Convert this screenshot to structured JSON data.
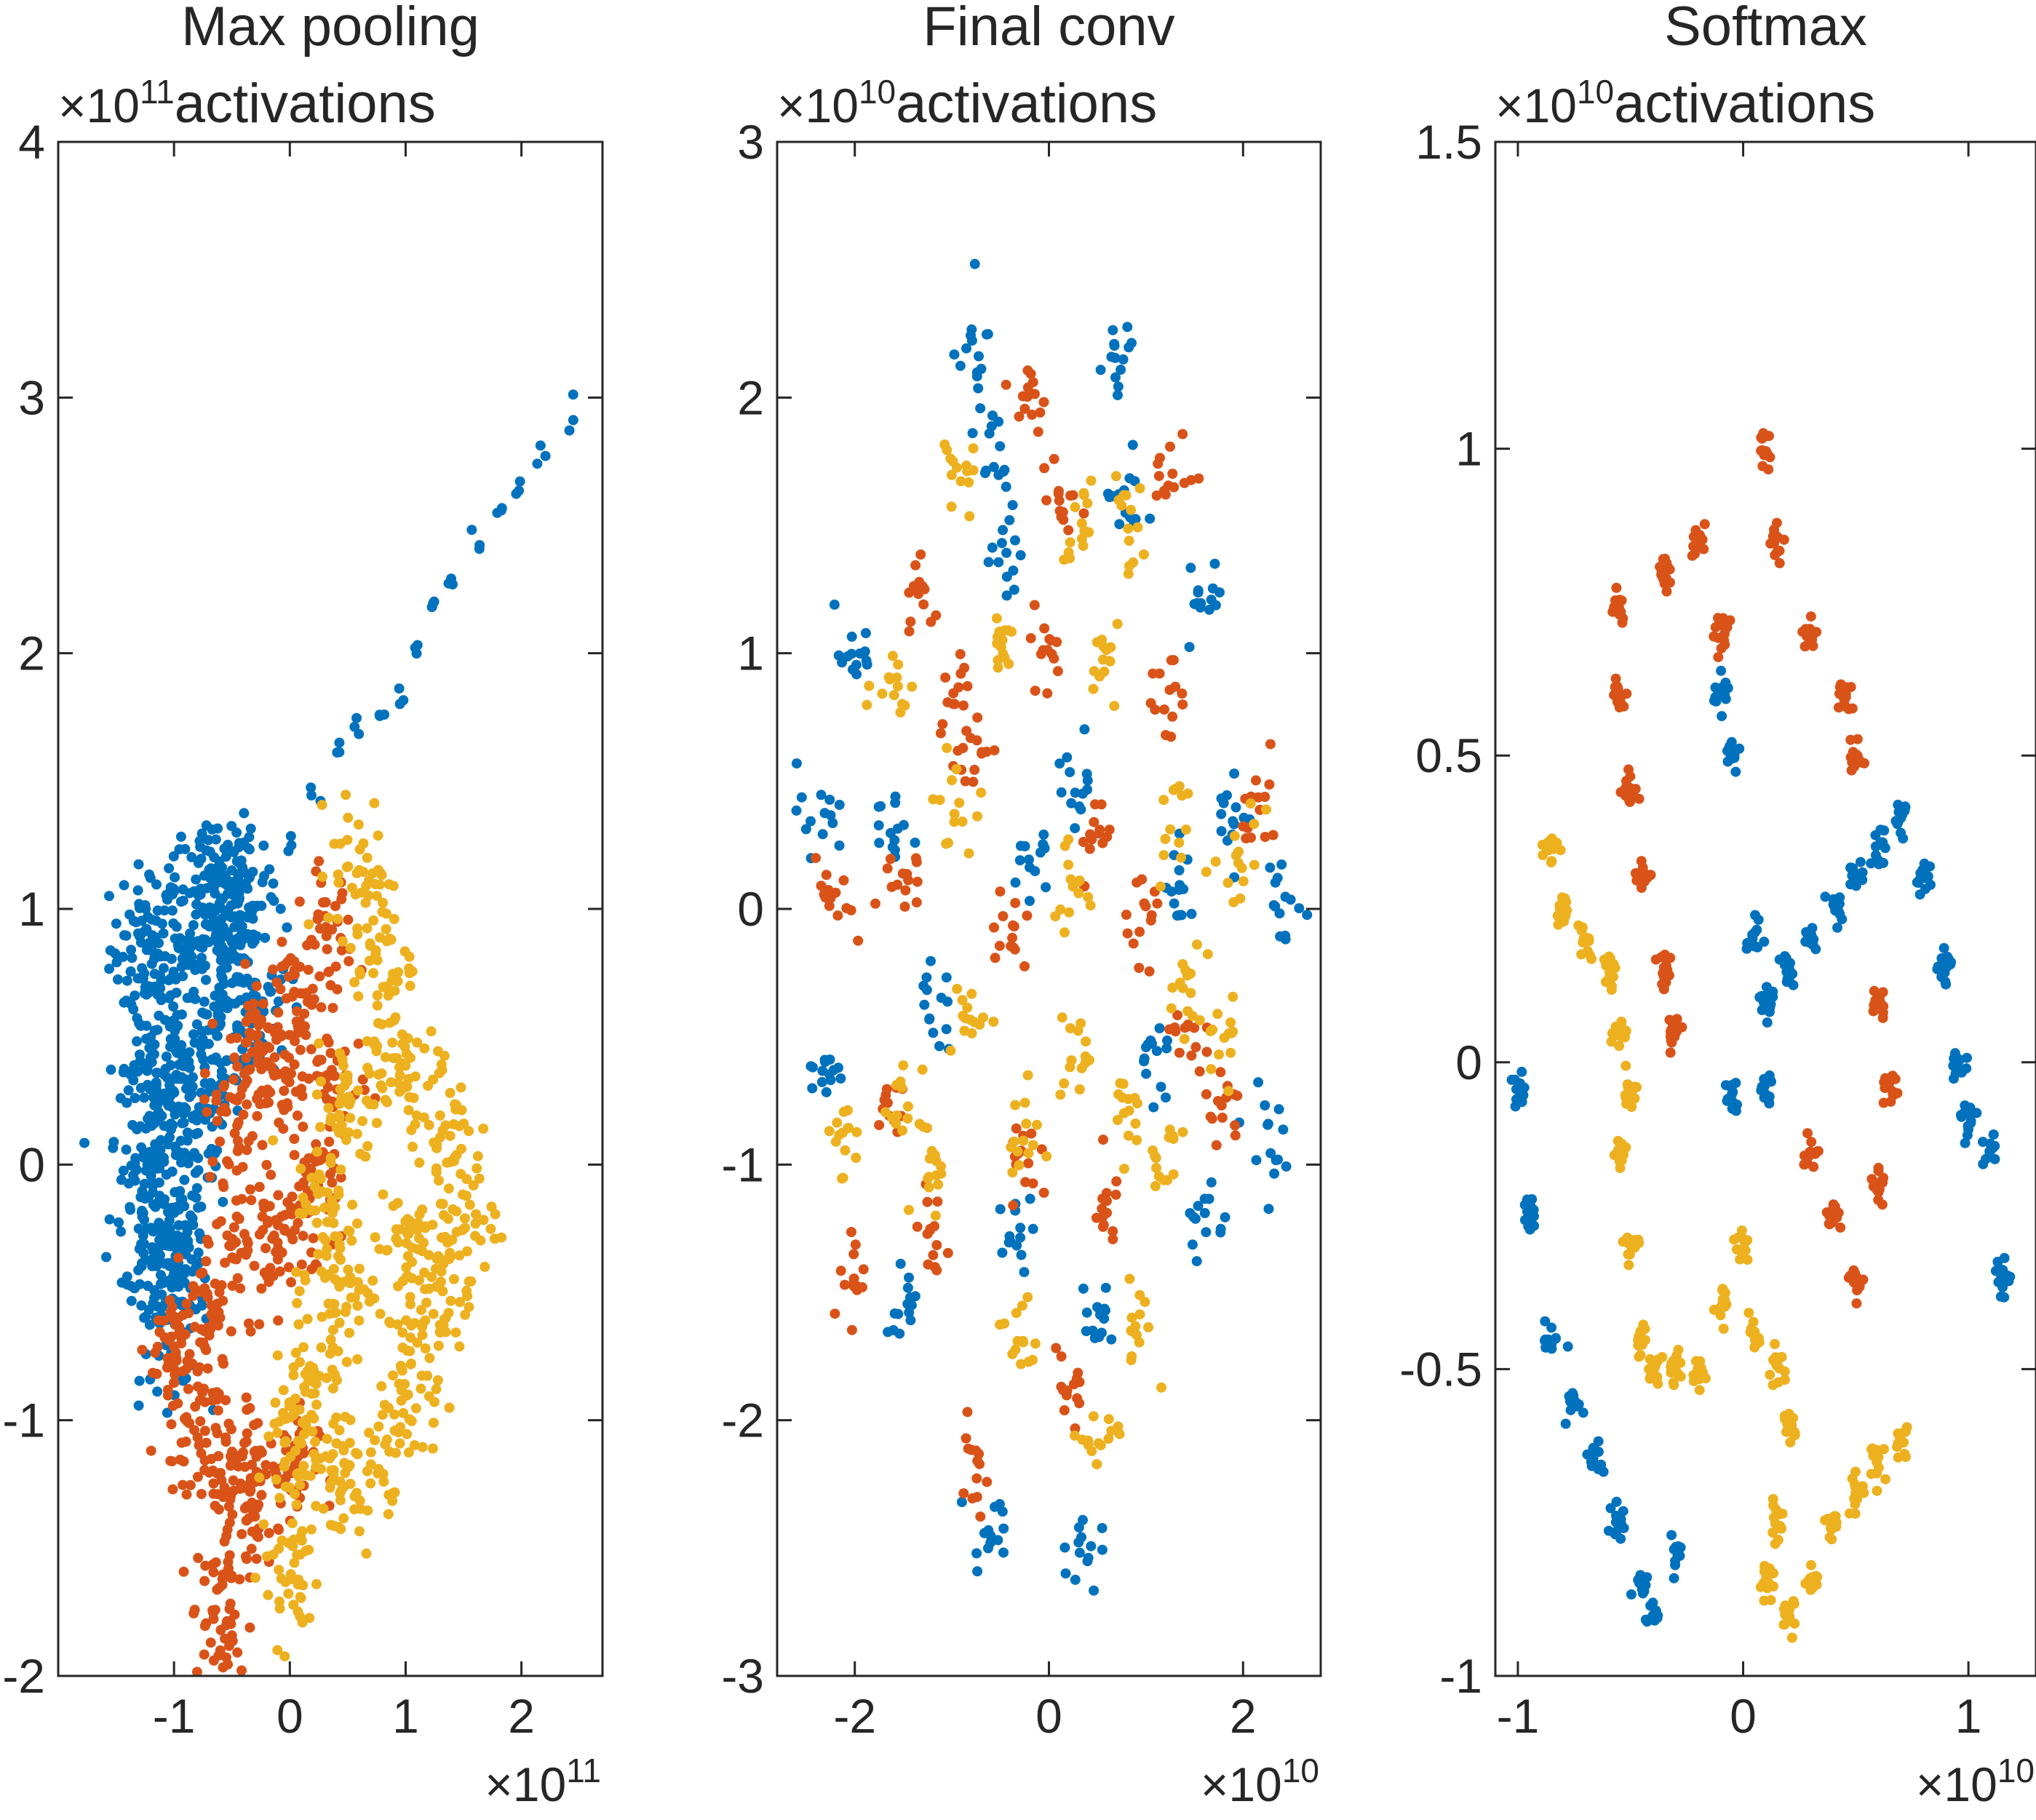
{
  "chart_data": [
    {
      "type": "scatter",
      "title_line1": "Max pooling",
      "title_line2": "activations",
      "xlabel": "",
      "ylabel": "",
      "xlim": [
        -2.0,
        2.7
      ],
      "ylim": [
        -2,
        4
      ],
      "x_ticks": [
        -1,
        0,
        1,
        2
      ],
      "y_ticks": [
        -2,
        -1,
        0,
        1,
        2,
        3,
        4
      ],
      "x_tick_labels": [
        "-1",
        "0",
        "1",
        "2"
      ],
      "y_tick_labels": [
        "-2",
        "-1",
        "0",
        "1",
        "2",
        "3",
        "4"
      ],
      "x_exponent": "×10",
      "x_exponent_power": "11",
      "y_exponent": "×10",
      "y_exponent_power": "11",
      "grid": false,
      "legend": "none",
      "colors": [
        "#0072BD",
        "#D95319",
        "#EDB120"
      ],
      "clusters": [
        {
          "color": 0,
          "points": [
            [
              -1.25,
              0.85
            ],
            [
              -1.15,
              0.6
            ],
            [
              -1.2,
              0.2
            ],
            [
              -1.25,
              -0.1
            ],
            [
              -1.15,
              -0.4
            ],
            [
              -1.0,
              -0.55
            ],
            [
              -0.95,
              -0.3
            ],
            [
              -0.8,
              0.1
            ],
            [
              -0.6,
              0.5
            ],
            [
              -0.5,
              0.8
            ],
            [
              -0.7,
              1.05
            ],
            [
              -0.4,
              1.1
            ],
            [
              -0.3,
              0.6
            ],
            [
              -0.6,
              0.95
            ],
            [
              -1.1,
              0.3
            ],
            [
              -0.9,
              0.9
            ]
          ],
          "spread": 0.16,
          "count": 55
        },
        {
          "color": 0,
          "points": [
            [
              -0.2,
              1.1
            ],
            [
              0.0,
              1.25
            ],
            [
              0.2,
              1.45
            ],
            [
              0.4,
              1.6
            ],
            [
              0.6,
              1.7
            ],
            [
              0.8,
              1.75
            ],
            [
              0.95,
              1.85
            ],
            [
              1.1,
              2.0
            ],
            [
              1.25,
              2.2
            ],
            [
              1.4,
              2.3
            ],
            [
              1.6,
              2.45
            ],
            [
              1.8,
              2.55
            ],
            [
              2.0,
              2.65
            ],
            [
              2.2,
              2.78
            ],
            [
              2.4,
              2.95
            ]
          ],
          "spread": 0.03,
          "count": 3
        },
        {
          "color": 1,
          "points": [
            [
              -0.5,
              0.2
            ],
            [
              -0.3,
              0.5
            ],
            [
              -0.1,
              0.3
            ],
            [
              0.1,
              0.6
            ],
            [
              0.3,
              0.9
            ],
            [
              0.4,
              0.3
            ],
            [
              0.2,
              -0.1
            ],
            [
              -0.1,
              -0.3
            ],
            [
              -0.4,
              -0.3
            ],
            [
              -0.7,
              -0.6
            ],
            [
              -1.0,
              -0.7
            ],
            [
              -0.9,
              -1.0
            ],
            [
              -0.6,
              -1.1
            ],
            [
              -0.3,
              -1.15
            ],
            [
              0.0,
              -1.2
            ],
            [
              -0.5,
              -1.5
            ],
            [
              -0.6,
              -1.8
            ]
          ],
          "spread": 0.13,
          "count": 40
        },
        {
          "color": 2,
          "points": [
            [
              0.6,
              1.15
            ],
            [
              0.8,
              0.8
            ],
            [
              0.9,
              0.4
            ],
            [
              0.5,
              0.2
            ],
            [
              0.3,
              -0.2
            ],
            [
              0.5,
              -0.5
            ],
            [
              0.2,
              -0.8
            ],
            [
              0.4,
              -1.2
            ],
            [
              0.8,
              -1.1
            ],
            [
              1.1,
              -0.8
            ],
            [
              1.3,
              -0.5
            ],
            [
              1.5,
              -0.2
            ],
            [
              1.3,
              0.2
            ],
            [
              1.0,
              -0.3
            ],
            [
              0.0,
              -1.1
            ],
            [
              0.0,
              -1.6
            ]
          ],
          "spread": 0.14,
          "count": 42
        }
      ]
    },
    {
      "type": "scatter",
      "title_line1": "Final conv",
      "title_line2": "activations",
      "xlabel": "",
      "ylabel": "",
      "xlim": [
        -2.8,
        2.8
      ],
      "ylim": [
        -3,
        3
      ],
      "x_ticks": [
        -2,
        0,
        2
      ],
      "y_ticks": [
        -3,
        -2,
        -1,
        0,
        1,
        2,
        3
      ],
      "x_tick_labels": [
        "-2",
        "0",
        "2"
      ],
      "y_tick_labels": [
        "-3",
        "-2",
        "-1",
        "0",
        "1",
        "2",
        "3"
      ],
      "x_exponent": "×10",
      "x_exponent_power": "10",
      "y_exponent": "×10",
      "y_exponent_power": "10",
      "grid": false,
      "legend": "none",
      "colors": [
        "#0072BD",
        "#D95319",
        "#EDB120"
      ],
      "clusters": [
        {
          "color": 0,
          "points": [
            [
              -0.8,
              2.2
            ],
            [
              -0.6,
              1.8
            ],
            [
              0.7,
              2.1
            ],
            [
              0.8,
              1.6
            ],
            [
              -2.0,
              1.0
            ],
            [
              -2.4,
              0.4
            ],
            [
              -1.6,
              0.3
            ],
            [
              -2.3,
              -0.6
            ],
            [
              -1.2,
              -0.4
            ],
            [
              -0.4,
              1.4
            ],
            [
              0.3,
              0.5
            ],
            [
              1.6,
              1.2
            ],
            [
              1.9,
              0.4
            ],
            [
              2.4,
              0.0
            ],
            [
              1.4,
              0.1
            ],
            [
              -1.5,
              -1.5
            ],
            [
              -0.3,
              -1.3
            ],
            [
              0.5,
              -1.6
            ],
            [
              1.6,
              -1.2
            ],
            [
              2.2,
              -0.9
            ],
            [
              -0.6,
              -2.4
            ],
            [
              0.3,
              -2.5
            ],
            [
              1.1,
              -0.6
            ],
            [
              -0.2,
              0.2
            ]
          ],
          "spread": 0.09,
          "count": 14
        },
        {
          "color": 1,
          "points": [
            [
              -0.2,
              2.0
            ],
            [
              0.1,
              1.6
            ],
            [
              1.3,
              1.7
            ],
            [
              -1.3,
              1.2
            ],
            [
              -1.0,
              0.9
            ],
            [
              0.0,
              1.0
            ],
            [
              1.2,
              0.8
            ],
            [
              -2.2,
              0.0
            ],
            [
              -1.5,
              0.1
            ],
            [
              -0.8,
              0.6
            ],
            [
              -0.4,
              -0.1
            ],
            [
              0.5,
              0.3
            ],
            [
              1.0,
              0.0
            ],
            [
              2.2,
              0.4
            ],
            [
              -2.0,
              -1.5
            ],
            [
              -1.2,
              -1.3
            ],
            [
              -0.2,
              -1.0
            ],
            [
              0.6,
              -1.2
            ],
            [
              1.8,
              -0.8
            ],
            [
              -0.8,
              -2.2
            ],
            [
              0.2,
              -1.9
            ],
            [
              -1.6,
              -0.8
            ],
            [
              1.4,
              -0.5
            ]
          ],
          "spread": 0.09,
          "count": 14
        },
        {
          "color": 2,
          "points": [
            [
              -0.9,
              1.7
            ],
            [
              0.3,
              1.5
            ],
            [
              0.8,
              1.5
            ],
            [
              -1.6,
              0.9
            ],
            [
              -0.5,
              1.1
            ],
            [
              0.6,
              1.0
            ],
            [
              -1.0,
              0.4
            ],
            [
              0.2,
              0.1
            ],
            [
              1.3,
              0.3
            ],
            [
              2.0,
              0.2
            ],
            [
              -1.5,
              -0.8
            ],
            [
              -0.8,
              -0.4
            ],
            [
              0.3,
              -0.6
            ],
            [
              1.4,
              -0.3
            ],
            [
              1.8,
              -0.5
            ],
            [
              -1.2,
              -1.0
            ],
            [
              -0.3,
              -0.9
            ],
            [
              0.8,
              -0.8
            ],
            [
              1.2,
              -1.0
            ],
            [
              -0.3,
              -1.7
            ],
            [
              0.5,
              -2.1
            ],
            [
              0.9,
              -1.6
            ],
            [
              -2.1,
              -0.9
            ]
          ],
          "spread": 0.09,
          "count": 14
        }
      ]
    },
    {
      "type": "scatter",
      "title_line1": "Softmax",
      "title_line2": "activations",
      "xlabel": "",
      "ylabel": "",
      "xlim": [
        -1.1,
        1.3
      ],
      "ylim": [
        -1,
        1.5
      ],
      "x_ticks": [
        -1,
        0,
        1
      ],
      "y_ticks": [
        -1,
        -0.5,
        0,
        0.5,
        1,
        1.5
      ],
      "x_tick_labels": [
        "-1",
        "0",
        "1"
      ],
      "y_tick_labels": [
        "-1",
        "-0.5",
        "0",
        "0.5",
        "1",
        "1.5"
      ],
      "x_exponent": "×10",
      "x_exponent_power": "10",
      "y_exponent": "×10",
      "y_exponent_power": "10",
      "grid": false,
      "legend": "none",
      "colors": [
        "#0072BD",
        "#D95319",
        "#EDB120"
      ],
      "clusters": [
        {
          "color": 0,
          "points": [
            [
              -1.0,
              -0.05
            ],
            [
              -0.95,
              -0.25
            ],
            [
              -0.85,
              -0.45
            ],
            [
              -0.75,
              -0.55
            ],
            [
              -0.65,
              -0.65
            ],
            [
              -0.55,
              -0.75
            ],
            [
              -0.45,
              -0.85
            ],
            [
              -0.4,
              -0.9
            ],
            [
              -0.3,
              -0.8
            ],
            [
              -0.1,
              0.6
            ],
            [
              -0.05,
              0.5
            ],
            [
              0.05,
              0.2
            ],
            [
              0.1,
              0.1
            ],
            [
              0.2,
              0.15
            ],
            [
              0.3,
              0.2
            ],
            [
              0.4,
              0.25
            ],
            [
              0.5,
              0.3
            ],
            [
              0.6,
              0.35
            ],
            [
              0.7,
              0.4
            ],
            [
              0.8,
              0.3
            ],
            [
              0.9,
              0.15
            ],
            [
              0.95,
              0.0
            ],
            [
              1.0,
              -0.1
            ],
            [
              1.1,
              -0.15
            ],
            [
              1.15,
              -0.35
            ],
            [
              -0.05,
              -0.05
            ],
            [
              0.1,
              -0.05
            ]
          ],
          "spread": 0.035,
          "count": 14
        },
        {
          "color": 1,
          "points": [
            [
              -0.55,
              0.75
            ],
            [
              -0.55,
              0.6
            ],
            [
              -0.5,
              0.45
            ],
            [
              -0.45,
              0.3
            ],
            [
              -0.35,
              0.15
            ],
            [
              -0.3,
              0.05
            ],
            [
              -0.35,
              0.8
            ],
            [
              -0.2,
              0.85
            ],
            [
              -0.1,
              0.7
            ],
            [
              0.1,
              1.0
            ],
            [
              0.15,
              0.85
            ],
            [
              0.3,
              0.7
            ],
            [
              0.45,
              0.6
            ],
            [
              0.5,
              0.5
            ],
            [
              0.3,
              -0.15
            ],
            [
              0.4,
              -0.25
            ],
            [
              0.5,
              -0.35
            ],
            [
              0.6,
              -0.2
            ],
            [
              0.65,
              -0.05
            ],
            [
              0.6,
              0.1
            ]
          ],
          "spread": 0.035,
          "count": 15
        },
        {
          "color": 2,
          "points": [
            [
              -0.85,
              0.35
            ],
            [
              -0.8,
              0.25
            ],
            [
              -0.7,
              0.2
            ],
            [
              -0.6,
              0.15
            ],
            [
              -0.55,
              0.05
            ],
            [
              -0.5,
              -0.05
            ],
            [
              -0.55,
              -0.15
            ],
            [
              -0.5,
              -0.3
            ],
            [
              -0.45,
              -0.45
            ],
            [
              -0.4,
              -0.5
            ],
            [
              -0.3,
              -0.5
            ],
            [
              -0.2,
              -0.5
            ],
            [
              -0.1,
              -0.4
            ],
            [
              0.05,
              -0.45
            ],
            [
              0.15,
              -0.5
            ],
            [
              0.2,
              -0.6
            ],
            [
              0.15,
              -0.75
            ],
            [
              0.1,
              -0.85
            ],
            [
              0.2,
              -0.9
            ],
            [
              0.3,
              -0.85
            ],
            [
              0.4,
              -0.75
            ],
            [
              0.5,
              -0.7
            ],
            [
              0.6,
              -0.65
            ],
            [
              0.7,
              -0.62
            ],
            [
              0.0,
              -0.3
            ]
          ],
          "spread": 0.035,
          "count": 14
        }
      ]
    }
  ]
}
